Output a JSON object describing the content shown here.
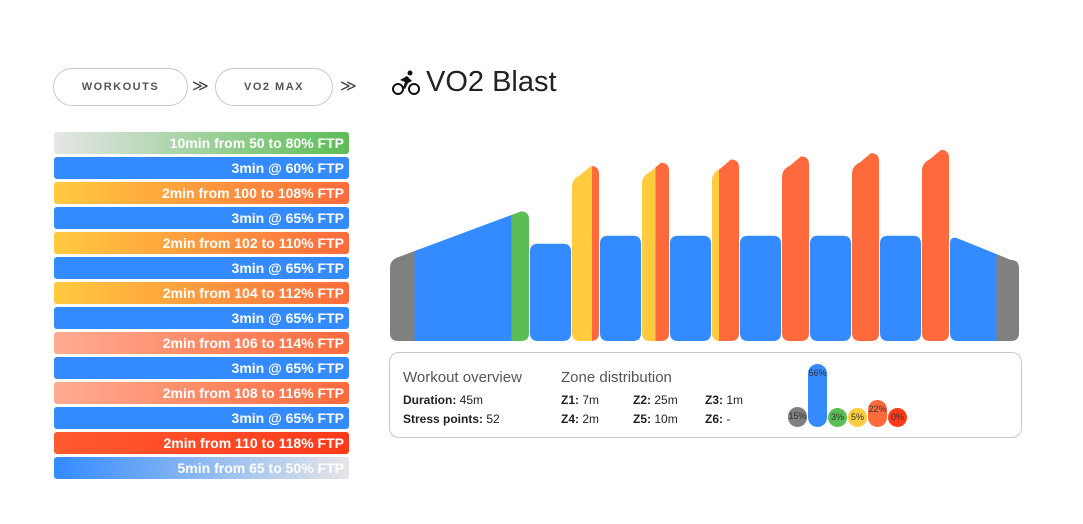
{
  "breadcrumb": {
    "items": [
      "WORKOUTS",
      "VO2 MAX"
    ],
    "separator": "≫",
    "title": "VO2 Blast"
  },
  "colors": {
    "gray": "#808080",
    "blue": "#338bff",
    "green": "#5bbd55",
    "yellow": "#ffcb3f",
    "orange": "#ff6a3d",
    "red": "#ff3a1a"
  },
  "intervals": [
    {
      "label": "10min from 50 to 80% FTP",
      "minutes": 10,
      "from": 50,
      "to": 80,
      "g": [
        "#e6e6e6",
        "#5bbd55"
      ]
    },
    {
      "label": "3min @ 60% FTP",
      "minutes": 3,
      "from": 60,
      "to": 60,
      "g": [
        "#338bff",
        "#338bff"
      ]
    },
    {
      "label": "2min from 100 to 108% FTP",
      "minutes": 2,
      "from": 100,
      "to": 108,
      "g": [
        "#ffca3f",
        "#ff6a3d"
      ]
    },
    {
      "label": "3min @ 65% FTP",
      "minutes": 3,
      "from": 65,
      "to": 65,
      "g": [
        "#338bff",
        "#338bff"
      ]
    },
    {
      "label": "2min from 102 to 110% FTP",
      "minutes": 2,
      "from": 102,
      "to": 110,
      "g": [
        "#ffca3f",
        "#ff6a3d"
      ]
    },
    {
      "label": "3min @ 65% FTP",
      "minutes": 3,
      "from": 65,
      "to": 65,
      "g": [
        "#338bff",
        "#338bff"
      ]
    },
    {
      "label": "2min from 104 to 112% FTP",
      "minutes": 2,
      "from": 104,
      "to": 112,
      "g": [
        "#ffca3f",
        "#ff6a3d"
      ]
    },
    {
      "label": "3min @ 65% FTP",
      "minutes": 3,
      "from": 65,
      "to": 65,
      "g": [
        "#338bff",
        "#338bff"
      ]
    },
    {
      "label": "2min from 106 to 114% FTP",
      "minutes": 2,
      "from": 106,
      "to": 114,
      "g": [
        "#ffab92",
        "#ff6a3d"
      ]
    },
    {
      "label": "3min @ 65% FTP",
      "minutes": 3,
      "from": 65,
      "to": 65,
      "g": [
        "#338bff",
        "#338bff"
      ]
    },
    {
      "label": "2min from 108 to 116% FTP",
      "minutes": 2,
      "from": 108,
      "to": 116,
      "g": [
        "#ffab92",
        "#ff6a3d"
      ]
    },
    {
      "label": "3min @ 65% FTP",
      "minutes": 3,
      "from": 65,
      "to": 65,
      "g": [
        "#338bff",
        "#338bff"
      ]
    },
    {
      "label": "2min from 110 to 118% FTP",
      "minutes": 2,
      "from": 110,
      "to": 118,
      "g": [
        "#ff5a30",
        "#ff3a1a"
      ]
    },
    {
      "label": "5min from 65 to 50% FTP",
      "minutes": 5,
      "from": 65,
      "to": 50,
      "g": [
        "#338bff",
        "#e6e6e6"
      ]
    }
  ],
  "overview": {
    "title": "Workout overview",
    "duration_label": "Duration:",
    "duration": "45m",
    "stress_label": "Stress points:",
    "stress": "52"
  },
  "zones": {
    "title": "Zone distribution",
    "items": [
      {
        "label": "Z1:",
        "value": "7m"
      },
      {
        "label": "Z2:",
        "value": "25m"
      },
      {
        "label": "Z3:",
        "value": "1m"
      },
      {
        "label": "Z4:",
        "value": "2m"
      },
      {
        "label": "Z5:",
        "value": "10m"
      },
      {
        "label": "Z6:",
        "value": "-"
      }
    ],
    "distribution": [
      {
        "pct": "15%",
        "v": 15,
        "c": "#808080"
      },
      {
        "pct": "56%",
        "v": 56,
        "c": "#338bff"
      },
      {
        "pct": "3%",
        "v": 3,
        "c": "#5bbd55"
      },
      {
        "pct": "5%",
        "v": 5,
        "c": "#ffcb3f"
      },
      {
        "pct": "22%",
        "v": 22,
        "c": "#ff6a3d"
      },
      {
        "pct": "0%",
        "v": 0,
        "c": "#ff3a1a"
      }
    ]
  }
}
